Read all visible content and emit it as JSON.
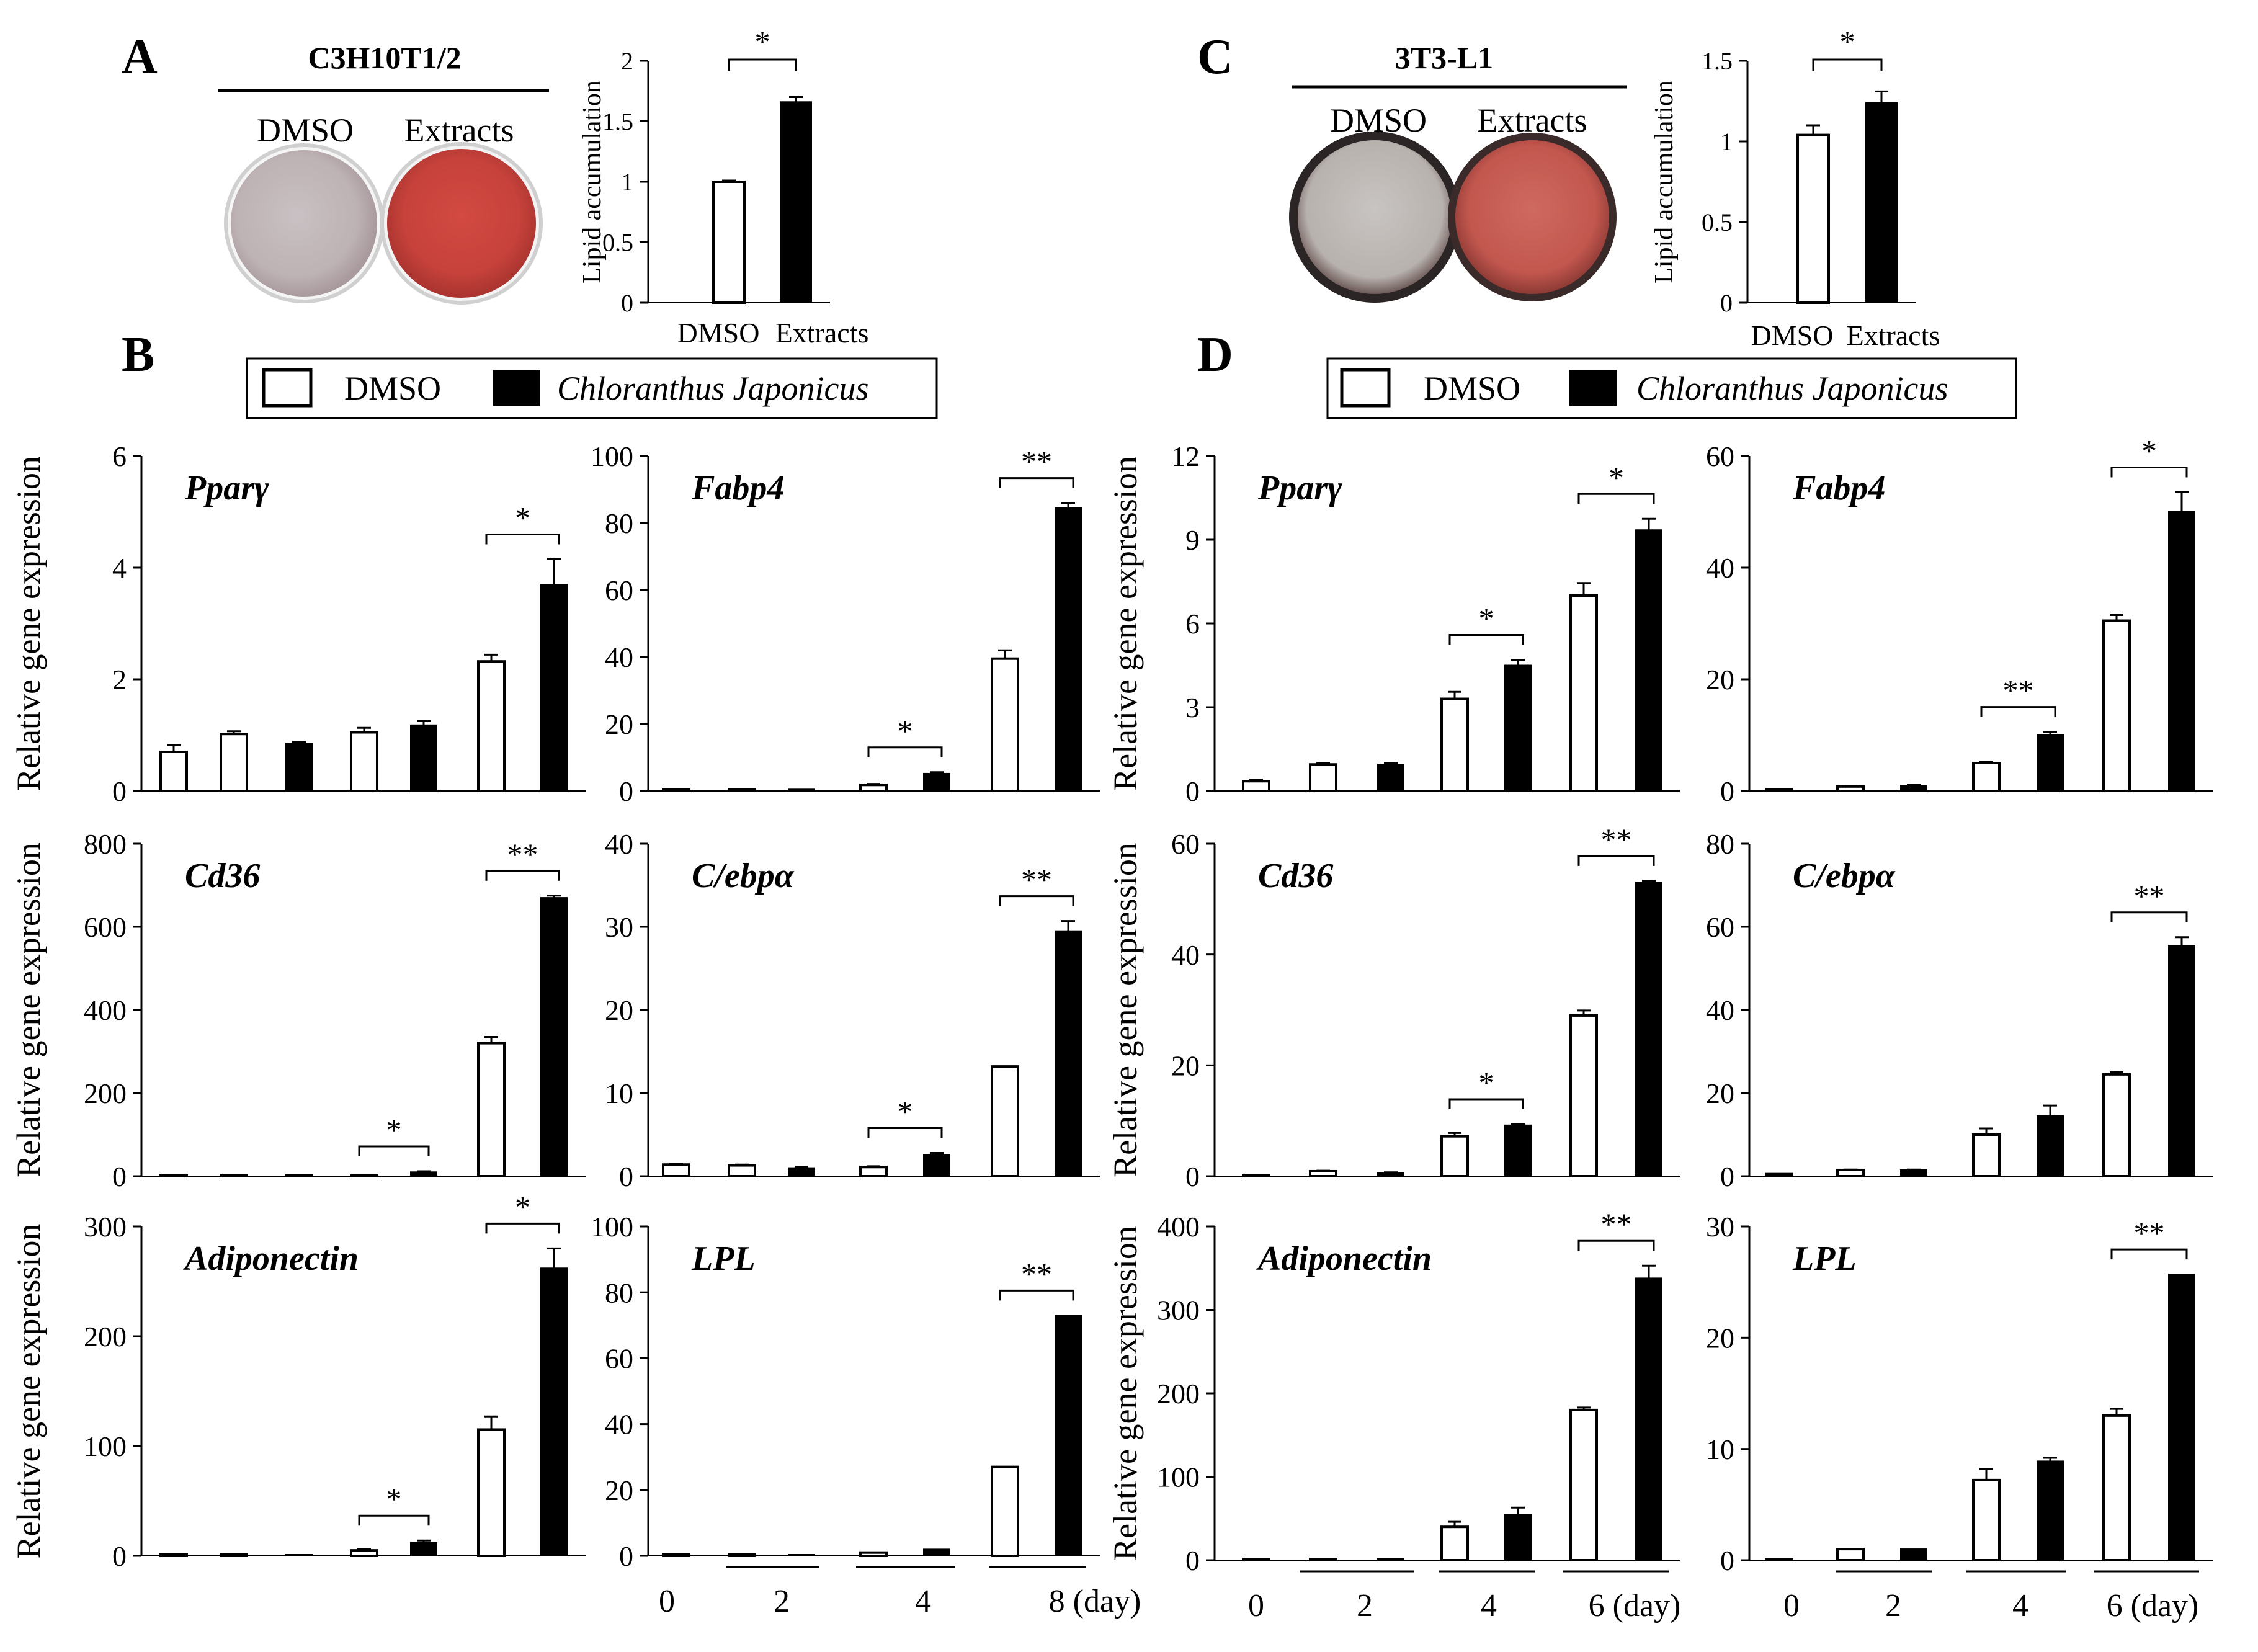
{
  "panels": {
    "A": {
      "label": "A",
      "cell_line": "C3H10T1/2",
      "plate_labels": [
        "DMSO",
        "Extracts"
      ]
    },
    "B": {
      "label": "B"
    },
    "C": {
      "label": "C",
      "cell_line": "3T3-L1",
      "plate_labels": [
        "DMSO",
        "Extracts"
      ]
    },
    "D": {
      "label": "D"
    }
  },
  "legend": {
    "dmso": "DMSO",
    "treatment": "Chloranthus Japonicus"
  },
  "colors": {
    "open_bar": "#ffffff",
    "filled_bar": "#000000",
    "plate_red": "#c5403a",
    "plate_gray": "#b9aeb0"
  },
  "chart_data": [
    {
      "id": "A-lipid",
      "type": "bar",
      "ylabel": "Lipid accumulation",
      "categories": [
        "DMSO",
        "Extracts"
      ],
      "values": [
        1.0,
        1.66
      ],
      "errors": [
        0.01,
        0.04
      ],
      "ylim": [
        0,
        2
      ],
      "yticks": [
        0,
        0.5,
        1,
        1.5,
        2
      ],
      "ytick_labels": [
        "0",
        "0.5",
        "1",
        "1.5",
        "2"
      ],
      "significance": "*"
    },
    {
      "id": "C-lipid",
      "type": "bar",
      "ylabel": "Lipid accumulation",
      "categories": [
        "DMSO",
        "Extracts"
      ],
      "values": [
        1.04,
        1.24
      ],
      "errors": [
        0.06,
        0.07
      ],
      "ylim": [
        0,
        1.5
      ],
      "yticks": [
        0,
        0.5,
        1,
        1.5
      ],
      "ytick_labels": [
        "0",
        "0.5",
        "1",
        "1.5"
      ],
      "significance": "*"
    },
    {
      "id": "B-ppar",
      "type": "bar",
      "gene": "Pparγ",
      "ylabel": "Relative gene expression",
      "x": [
        "0",
        "2",
        "2",
        "4",
        "4",
        "8",
        "8"
      ],
      "fills": [
        "open",
        "open",
        "filled",
        "open",
        "filled",
        "open",
        "filled"
      ],
      "values": [
        0.7,
        1.02,
        0.85,
        1.05,
        1.18,
        2.32,
        3.7
      ],
      "errors": [
        0.12,
        0.05,
        0.03,
        0.08,
        0.07,
        0.12,
        0.45
      ],
      "ylim": [
        0,
        6
      ],
      "yticks": [
        0,
        2,
        4,
        6
      ],
      "ytick_labels": [
        "0",
        "2",
        "4",
        "6"
      ],
      "brackets": [
        {
          "pair": [
            5,
            6
          ],
          "label": "*"
        }
      ]
    },
    {
      "id": "B-fabp4",
      "type": "bar",
      "gene": "Fabp4",
      "ylabel": "",
      "x": [
        "0",
        "2",
        "2",
        "4",
        "4",
        "8",
        "8"
      ],
      "fills": [
        "open",
        "open",
        "filled",
        "open",
        "filled",
        "open",
        "filled"
      ],
      "values": [
        0.3,
        0.5,
        0.5,
        1.8,
        5.2,
        39.5,
        84.5
      ],
      "errors": [
        0,
        0,
        0,
        0.3,
        0.4,
        2.5,
        1.5
      ],
      "ylim": [
        0,
        100
      ],
      "yticks": [
        0,
        20,
        40,
        60,
        80,
        100
      ],
      "ytick_labels": [
        "0",
        "20",
        "40",
        "60",
        "80",
        "100"
      ],
      "brackets": [
        {
          "pair": [
            3,
            4
          ],
          "label": "*"
        },
        {
          "pair": [
            5,
            6
          ],
          "label": "**"
        }
      ]
    },
    {
      "id": "B-cd36",
      "type": "bar",
      "gene": "Cd36",
      "ylabel": "Relative gene expression",
      "x": [
        "0",
        "2",
        "2",
        "4",
        "4",
        "8",
        "8"
      ],
      "fills": [
        "open",
        "open",
        "filled",
        "open",
        "filled",
        "open",
        "filled"
      ],
      "values": [
        2,
        2,
        2,
        3,
        10,
        320,
        670
      ],
      "errors": [
        0,
        0,
        0,
        0,
        2,
        15,
        5
      ],
      "ylim": [
        0,
        800
      ],
      "yticks": [
        0,
        200,
        400,
        600,
        800
      ],
      "ytick_labels": [
        "0",
        "200",
        "400",
        "600",
        "800"
      ],
      "brackets": [
        {
          "pair": [
            3,
            4
          ],
          "label": "*"
        },
        {
          "pair": [
            5,
            6
          ],
          "label": "**"
        }
      ]
    },
    {
      "id": "B-cebpa",
      "type": "bar",
      "gene": "C/ebpα",
      "ylabel": "",
      "x": [
        "0",
        "2",
        "2",
        "4",
        "4",
        "8",
        "8"
      ],
      "fills": [
        "open",
        "open",
        "filled",
        "open",
        "filled",
        "open",
        "filled"
      ],
      "values": [
        1.4,
        1.3,
        1.0,
        1.1,
        2.6,
        13.2,
        29.5
      ],
      "errors": [
        0.1,
        0.1,
        0.1,
        0.1,
        0.2,
        0,
        1.2
      ],
      "ylim": [
        0,
        40
      ],
      "yticks": [
        0,
        10,
        20,
        30,
        40
      ],
      "ytick_labels": [
        "0",
        "10",
        "20",
        "30",
        "40"
      ],
      "brackets": [
        {
          "pair": [
            3,
            4
          ],
          "label": "*"
        },
        {
          "pair": [
            5,
            6
          ],
          "label": "**"
        }
      ]
    },
    {
      "id": "B-adipo",
      "type": "bar",
      "gene": "Adiponectin",
      "ylabel": "Relative gene expression",
      "x": [
        "0",
        "2",
        "2",
        "4",
        "4",
        "8",
        "8"
      ],
      "fills": [
        "open",
        "open",
        "filled",
        "open",
        "filled",
        "open",
        "filled"
      ],
      "values": [
        0.5,
        1,
        1,
        5,
        12,
        115,
        262
      ],
      "errors": [
        0,
        0,
        0,
        1,
        2,
        12,
        18
      ],
      "ylim": [
        0,
        300
      ],
      "yticks": [
        0,
        100,
        200,
        300
      ],
      "ytick_labels": [
        "0",
        "100",
        "200",
        "300"
      ],
      "brackets": [
        {
          "pair": [
            3,
            4
          ],
          "label": "*"
        },
        {
          "pair": [
            5,
            6
          ],
          "label": "*"
        }
      ]
    },
    {
      "id": "B-lpl",
      "type": "bar",
      "gene": "LPL",
      "ylabel": "",
      "x": [
        "0",
        "2",
        "2",
        "4",
        "4",
        "8",
        "8"
      ],
      "fills": [
        "open",
        "open",
        "filled",
        "open",
        "filled",
        "open",
        "filled"
      ],
      "values": [
        0.2,
        0.3,
        0.3,
        1,
        2,
        27,
        73
      ],
      "errors": [
        0,
        0,
        0,
        0,
        0,
        0,
        0
      ],
      "ylim": [
        0,
        100
      ],
      "yticks": [
        0,
        20,
        40,
        60,
        80,
        100
      ],
      "ytick_labels": [
        "0",
        "20",
        "40",
        "60",
        "80",
        "100"
      ],
      "brackets": [
        {
          "pair": [
            5,
            6
          ],
          "label": "**"
        }
      ],
      "xlabels": [
        "0",
        "2",
        "4",
        "8 (day)"
      ]
    },
    {
      "id": "D-ppar",
      "type": "bar",
      "gene": "Pparγ",
      "ylabel": "Relative gene expression",
      "x": [
        "0",
        "2",
        "2",
        "4",
        "4",
        "6",
        "6"
      ],
      "fills": [
        "open",
        "open",
        "filled",
        "open",
        "filled",
        "open",
        "filled"
      ],
      "values": [
        0.35,
        0.95,
        0.95,
        3.3,
        4.5,
        7.0,
        9.35
      ],
      "errors": [
        0.05,
        0.05,
        0.05,
        0.25,
        0.2,
        0.45,
        0.4
      ],
      "ylim": [
        0,
        12
      ],
      "yticks": [
        0,
        3,
        6,
        9,
        12
      ],
      "ytick_labels": [
        "0",
        "3",
        "6",
        "9",
        "12"
      ],
      "brackets": [
        {
          "pair": [
            3,
            4
          ],
          "label": "*"
        },
        {
          "pair": [
            5,
            6
          ],
          "label": "*"
        }
      ]
    },
    {
      "id": "D-fabp4",
      "type": "bar",
      "gene": "Fabp4",
      "ylabel": "",
      "x": [
        "0",
        "2",
        "2",
        "4",
        "4",
        "6",
        "6"
      ],
      "fills": [
        "open",
        "open",
        "filled",
        "open",
        "filled",
        "open",
        "filled"
      ],
      "values": [
        0.2,
        0.8,
        1.0,
        5.0,
        10.0,
        30.5,
        50.0
      ],
      "errors": [
        0,
        0.1,
        0.1,
        0.2,
        0.6,
        1.0,
        3.5
      ],
      "ylim": [
        0,
        60
      ],
      "yticks": [
        0,
        20,
        40,
        60
      ],
      "ytick_labels": [
        "0",
        "20",
        "40",
        "60"
      ],
      "brackets": [
        {
          "pair": [
            3,
            4
          ],
          "label": "**"
        },
        {
          "pair": [
            5,
            6
          ],
          "label": "*"
        }
      ]
    },
    {
      "id": "D-cd36",
      "type": "bar",
      "gene": "Cd36",
      "ylabel": "Relative gene expression",
      "x": [
        "0",
        "2",
        "2",
        "4",
        "4",
        "6",
        "6"
      ],
      "fills": [
        "open",
        "open",
        "filled",
        "open",
        "filled",
        "open",
        "filled"
      ],
      "values": [
        0.2,
        0.9,
        0.6,
        7.2,
        9.2,
        29.0,
        53.0
      ],
      "errors": [
        0,
        0.1,
        0.1,
        0.6,
        0.2,
        0.9,
        0.3
      ],
      "ylim": [
        0,
        60
      ],
      "yticks": [
        0,
        20,
        40,
        60
      ],
      "ytick_labels": [
        "0",
        "20",
        "40",
        "60"
      ],
      "brackets": [
        {
          "pair": [
            3,
            4
          ],
          "label": "*"
        },
        {
          "pair": [
            5,
            6
          ],
          "label": "**"
        }
      ]
    },
    {
      "id": "D-cebpa",
      "type": "bar",
      "gene": "C/ebpα",
      "ylabel": "",
      "x": [
        "0",
        "2",
        "2",
        "4",
        "4",
        "6",
        "6"
      ],
      "fills": [
        "open",
        "open",
        "filled",
        "open",
        "filled",
        "open",
        "filled"
      ],
      "values": [
        0.5,
        1.5,
        1.5,
        10.0,
        14.5,
        24.5,
        55.5
      ],
      "errors": [
        0,
        0.1,
        0.1,
        1.5,
        2.5,
        0.5,
        2.0
      ],
      "ylim": [
        0,
        80
      ],
      "yticks": [
        0,
        20,
        40,
        60,
        80
      ],
      "ytick_labels": [
        "0",
        "20",
        "40",
        "60",
        "80"
      ],
      "brackets": [
        {
          "pair": [
            5,
            6
          ],
          "label": "**"
        }
      ]
    },
    {
      "id": "D-adipo",
      "type": "bar",
      "gene": "Adiponectin",
      "ylabel": "Relative gene expression",
      "x": [
        "0",
        "2",
        "2",
        "4",
        "4",
        "6",
        "6"
      ],
      "fills": [
        "open",
        "open",
        "filled",
        "open",
        "filled",
        "open",
        "filled"
      ],
      "values": [
        1,
        1,
        1,
        40,
        55,
        180,
        338
      ],
      "errors": [
        0,
        0,
        0,
        6,
        8,
        3,
        15
      ],
      "ylim": [
        0,
        400
      ],
      "yticks": [
        0,
        100,
        200,
        300,
        400
      ],
      "ytick_labels": [
        "0",
        "100",
        "200",
        "300",
        "400"
      ],
      "brackets": [
        {
          "pair": [
            5,
            6
          ],
          "label": "**"
        }
      ],
      "xlabels": [
        "0",
        "2",
        "4",
        "6 (day)"
      ]
    },
    {
      "id": "D-lpl",
      "type": "bar",
      "gene": "LPL",
      "ylabel": "",
      "x": [
        "0",
        "2",
        "2",
        "4",
        "4",
        "6",
        "6"
      ],
      "fills": [
        "open",
        "open",
        "filled",
        "open",
        "filled",
        "open",
        "filled"
      ],
      "values": [
        0,
        1.0,
        1.0,
        7.2,
        8.9,
        13.0,
        25.7
      ],
      "errors": [
        0,
        0,
        0,
        1.0,
        0.3,
        0.6,
        0
      ],
      "ylim": [
        0,
        30
      ],
      "yticks": [
        0,
        10,
        20,
        30
      ],
      "ytick_labels": [
        "0",
        "10",
        "20",
        "30"
      ],
      "brackets": [
        {
          "pair": [
            5,
            6
          ],
          "label": "**"
        }
      ],
      "xlabels": [
        "0",
        "2",
        "4",
        "6 (day)"
      ]
    }
  ]
}
